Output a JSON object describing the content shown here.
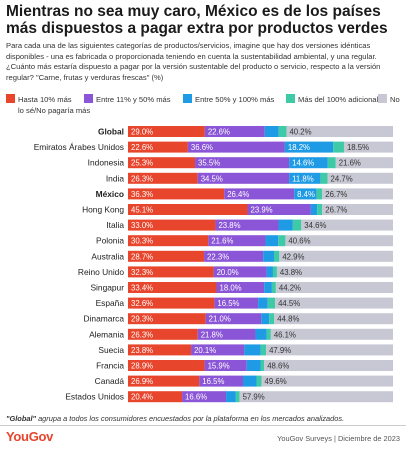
{
  "header": {
    "title": "Mientras no sea muy caro, México es de los países más dispuestos a pagar extra por productos verdes",
    "subtitle": "Para cada una de las siguientes categorías de productos/servicios, imagine que hay dos versiones idénticas disponibles - una es fabricada o proporcionada teniendo en cuenta la sustentabilidad ambiental, y una regular. ¿Cuánto más estaría dispuesto a pagar por la versión sustentable del producto o servicio, respecto a la versión regular? \"Carne, frutas y verduras frescas\" (%)"
  },
  "legend": {
    "items": [
      {
        "label": "Hasta 10% más",
        "color": "#e8452d"
      },
      {
        "label": "Entre 11% y 50% más",
        "color": "#8a55d6"
      },
      {
        "label": "Entre 50% y 100% más",
        "color": "#1e9be4"
      },
      {
        "label": "Más del 100% adicional",
        "color": "#3ec9a7"
      },
      {
        "label": "No lo sé/No pagaría más",
        "color": "#c8c8d4"
      }
    ]
  },
  "chart_data": {
    "type": "bar",
    "orientation": "horizontal",
    "stacked": true,
    "title": "Mientras no sea muy caro, México es de los países más dispuestos a pagar extra por productos verdes",
    "xlim": [
      0,
      100
    ],
    "unit": "%",
    "categories": [
      "Global",
      "Emiratos Árabes Unidos",
      "Indonesia",
      "India",
      "México",
      "Hong Kong",
      "Italia",
      "Polonia",
      "Australia",
      "Reino Unido",
      "Singapur",
      "España",
      "Dinamarca",
      "Alemania",
      "Suecia",
      "Francia",
      "Canadá",
      "Estados Unidos"
    ],
    "bold_categories": [
      "Global",
      "México"
    ],
    "series": [
      {
        "name": "Hasta 10% más",
        "color": "#e8452d",
        "values": [
          29.0,
          22.6,
          25.3,
          26.3,
          36.3,
          45.1,
          33.0,
          30.3,
          28.7,
          32.3,
          33.4,
          32.6,
          29.3,
          26.3,
          23.8,
          28.9,
          26.9,
          20.4
        ]
      },
      {
        "name": "Entre 11% y 50% más",
        "color": "#8a55d6",
        "values": [
          22.6,
          36.6,
          35.5,
          34.5,
          26.4,
          23.9,
          23.8,
          21.6,
          22.3,
          20.0,
          18.0,
          16.5,
          21.0,
          21.8,
          20.1,
          15.9,
          16.5,
          16.6
        ]
      },
      {
        "name": "Entre 50% y 100% más",
        "color": "#1e9be4",
        "values": [
          5.3,
          18.2,
          14.6,
          11.8,
          8.4,
          2.4,
          5.4,
          4.8,
          4.1,
          2.4,
          2.9,
          3.6,
          3.0,
          4.2,
          6.2,
          5.2,
          5.1,
          3.7
        ]
      },
      {
        "name": "Más del 100% adicional",
        "color": "#3ec9a7",
        "values": [
          2.9,
          4.1,
          3.0,
          2.7,
          2.2,
          1.9,
          3.2,
          2.7,
          2.0,
          1.5,
          1.5,
          2.8,
          1.9,
          1.6,
          2.0,
          1.4,
          1.9,
          1.4
        ]
      },
      {
        "name": "No lo sé/No pagaría más",
        "color": "#c8c8d4",
        "values": [
          40.2,
          18.5,
          21.6,
          24.7,
          26.7,
          26.7,
          34.6,
          40.6,
          42.9,
          43.8,
          44.2,
          44.5,
          44.8,
          46.1,
          47.9,
          48.6,
          49.6,
          57.9
        ]
      }
    ],
    "data_labels": [
      [
        "29.0%",
        "22.6%",
        "",
        "",
        "40.2%"
      ],
      [
        "22.6%",
        "36.6%",
        "18.2%",
        "",
        "18.5%"
      ],
      [
        "25.3%",
        "35.5%",
        "14.6%",
        "",
        "21.6%"
      ],
      [
        "26.3%",
        "34.5%",
        "11.8%",
        "",
        "24.7%"
      ],
      [
        "36.3%",
        "26.4%",
        "8.4%",
        "",
        "26.7%"
      ],
      [
        "45.1%",
        "23.9%",
        "",
        "",
        "26.7%"
      ],
      [
        "33.0%",
        "23.8%",
        "",
        "",
        "34.6%"
      ],
      [
        "30.3%",
        "21.6%",
        "",
        "",
        "40.6%"
      ],
      [
        "28.7%",
        "22.3%",
        "",
        "",
        "42.9%"
      ],
      [
        "32.3%",
        "20.0%",
        "",
        "",
        "43.8%"
      ],
      [
        "33.4%",
        "18.0%",
        "",
        "",
        "44.2%"
      ],
      [
        "32.6%",
        "16.5%",
        "",
        "",
        "44.5%"
      ],
      [
        "29.3%",
        "21.0%",
        "",
        "",
        "44.8%"
      ],
      [
        "26.3%",
        "21.8%",
        "",
        "",
        "46.1%"
      ],
      [
        "23.8%",
        "20.1%",
        "",
        "",
        "47.9%"
      ],
      [
        "28.9%",
        "15.9%",
        "",
        "",
        "48.6%"
      ],
      [
        "26.9%",
        "16.5%",
        "",
        "",
        "49.6%"
      ],
      [
        "20.4%",
        "16.6%",
        "",
        "",
        "57.9%"
      ]
    ]
  },
  "footer": {
    "footnote_bold": "\"Global\"",
    "footnote_rest": " agrupa a todos los consumidores encuestados por la plataforma en los mercados analizados.",
    "logo": "YouGov",
    "source": "YouGov Surveys | Diciembre de 2023"
  }
}
